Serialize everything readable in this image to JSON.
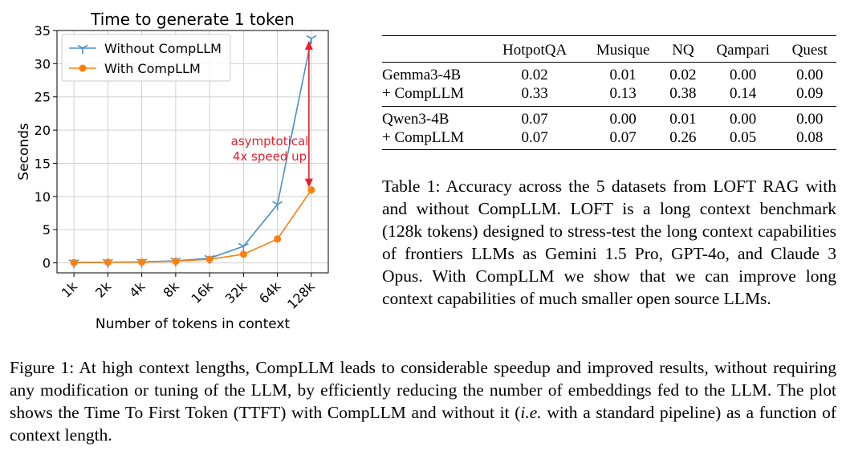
{
  "chart_data": {
    "type": "line",
    "title": "Time to generate 1 token",
    "xlabel": "Number of tokens in context",
    "ylabel": "Seconds",
    "categories": [
      "1k",
      "2k",
      "4k",
      "8k",
      "16k",
      "32k",
      "64k",
      "128k"
    ],
    "ylim": [
      -1.5,
      35
    ],
    "yticks": [
      0,
      5,
      10,
      15,
      20,
      25,
      30,
      35
    ],
    "grid": true,
    "legend": "top-left",
    "series": [
      {
        "name": "Without CompLLM",
        "color": "#4a90c8",
        "marker": "tri",
        "values": [
          0.05,
          0.1,
          0.15,
          0.3,
          0.7,
          2.5,
          8.8,
          33.8
        ]
      },
      {
        "name": "With CompLLM",
        "color": "#ff7f0e",
        "marker": "circle",
        "values": [
          0.05,
          0.1,
          0.12,
          0.25,
          0.55,
          1.3,
          3.6,
          11.0
        ]
      }
    ],
    "annotation": {
      "text_line1": "asymptotical",
      "text_line2": "4x speed up",
      "color": "#e8202a"
    }
  },
  "table": {
    "columns": [
      "",
      "HotpotQA",
      "Musique",
      "NQ",
      "Qampari",
      "Quest"
    ],
    "groups": [
      {
        "rows": [
          {
            "model": "Gemma3-4B",
            "values": [
              "0.02",
              "0.01",
              "0.02",
              "0.00",
              "0.00"
            ]
          },
          {
            "model": "+ CompLLM",
            "values": [
              "0.33",
              "0.13",
              "0.38",
              "0.14",
              "0.09"
            ]
          }
        ]
      },
      {
        "rows": [
          {
            "model": "Qwen3-4B",
            "values": [
              "0.07",
              "0.00",
              "0.01",
              "0.00",
              "0.00"
            ]
          },
          {
            "model": "+ CompLLM",
            "values": [
              "0.07",
              "0.07",
              "0.26",
              "0.05",
              "0.08"
            ]
          }
        ]
      }
    ]
  },
  "table_caption": "Table 1:  Accuracy across the 5 datasets from LOFT RAG with and without CompLLM. LOFT is a long context benchmark (128k tokens) designed to stress-test the long context capabilities of frontiers LLMs as Gemini 1.5 Pro, GPT-4o, and Claude 3 Opus.  With CompLLM we show that we can improve long context capabilities of much smaller open source LLMs.",
  "figure_caption": {
    "part1": "Figure 1: At high context lengths, CompLLM leads to considerable speedup and improved results, without requiring any modification or tuning of the LLM, by efficiently reducing the number of embeddings fed to the LLM. The plot shows the Time To First Token (TTFT) with CompLLM and without it (",
    "italic": "i.e.",
    "part2": " with a standard pipeline) as a function of context length."
  }
}
